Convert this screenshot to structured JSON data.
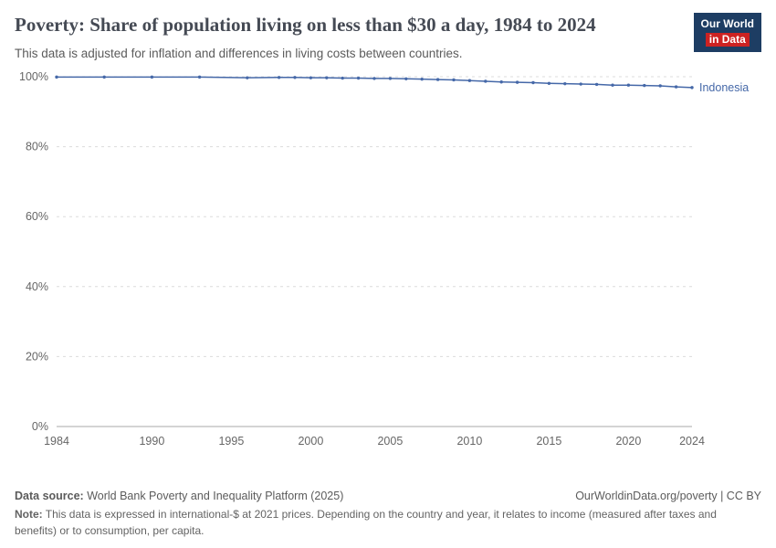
{
  "header": {
    "title": "Poverty: Share of population living on less than $30 a day, 1984 to 2024",
    "subtitle": "This data is adjusted for inflation and differences in living costs between countries.",
    "logo": {
      "line1": "Our World",
      "line2": "in Data"
    }
  },
  "colors": {
    "series_blue": "#4568a8",
    "logo_navy": "#1d3d63",
    "logo_red": "#cd2222",
    "gridline": "#dcdcdc",
    "axis_line": "#a9a9a9",
    "tick_text": "#666666"
  },
  "chart_data": {
    "type": "line",
    "title": "Poverty: Share of population living on less than $30 a day, 1984 to 2024",
    "subtitle": "This data is adjusted for inflation and differences in living costs between countries.",
    "xlabel": "",
    "ylabel": "",
    "xlim": [
      1984,
      2024
    ],
    "ylim": [
      0,
      100
    ],
    "x_ticks": [
      1984,
      1990,
      1995,
      2000,
      2005,
      2010,
      2015,
      2020,
      2024
    ],
    "y_ticks": [
      0,
      20,
      40,
      60,
      80,
      100
    ],
    "y_tick_suffix": "%",
    "grid": "horizontal-dashed",
    "legend_position": "end-of-line-label",
    "series": [
      {
        "name": "Indonesia",
        "color": "#4568a8",
        "x": [
          1984,
          1987,
          1990,
          1993,
          1996,
          1998,
          1999,
          2000,
          2001,
          2002,
          2003,
          2004,
          2005,
          2006,
          2007,
          2008,
          2009,
          2010,
          2011,
          2012,
          2013,
          2014,
          2015,
          2016,
          2017,
          2018,
          2019,
          2020,
          2021,
          2022,
          2023,
          2024
        ],
        "values": [
          99.9,
          99.9,
          99.9,
          99.9,
          99.7,
          99.8,
          99.8,
          99.7,
          99.7,
          99.6,
          99.6,
          99.5,
          99.5,
          99.4,
          99.3,
          99.2,
          99.1,
          98.9,
          98.7,
          98.5,
          98.4,
          98.3,
          98.1,
          98.0,
          97.9,
          97.8,
          97.6,
          97.6,
          97.5,
          97.4,
          97.1,
          96.9
        ]
      }
    ]
  },
  "footer": {
    "datasource_label": "Data source:",
    "datasource_text": " World Bank Poverty and Inequality Platform (2025)",
    "attribution": "OurWorldinData.org/poverty | CC BY",
    "note_label": "Note:",
    "note_text": " This data is expressed in international-$ at 2021 prices. Depending on the country and year, it relates to income (measured after taxes and benefits) or to consumption, per capita."
  }
}
